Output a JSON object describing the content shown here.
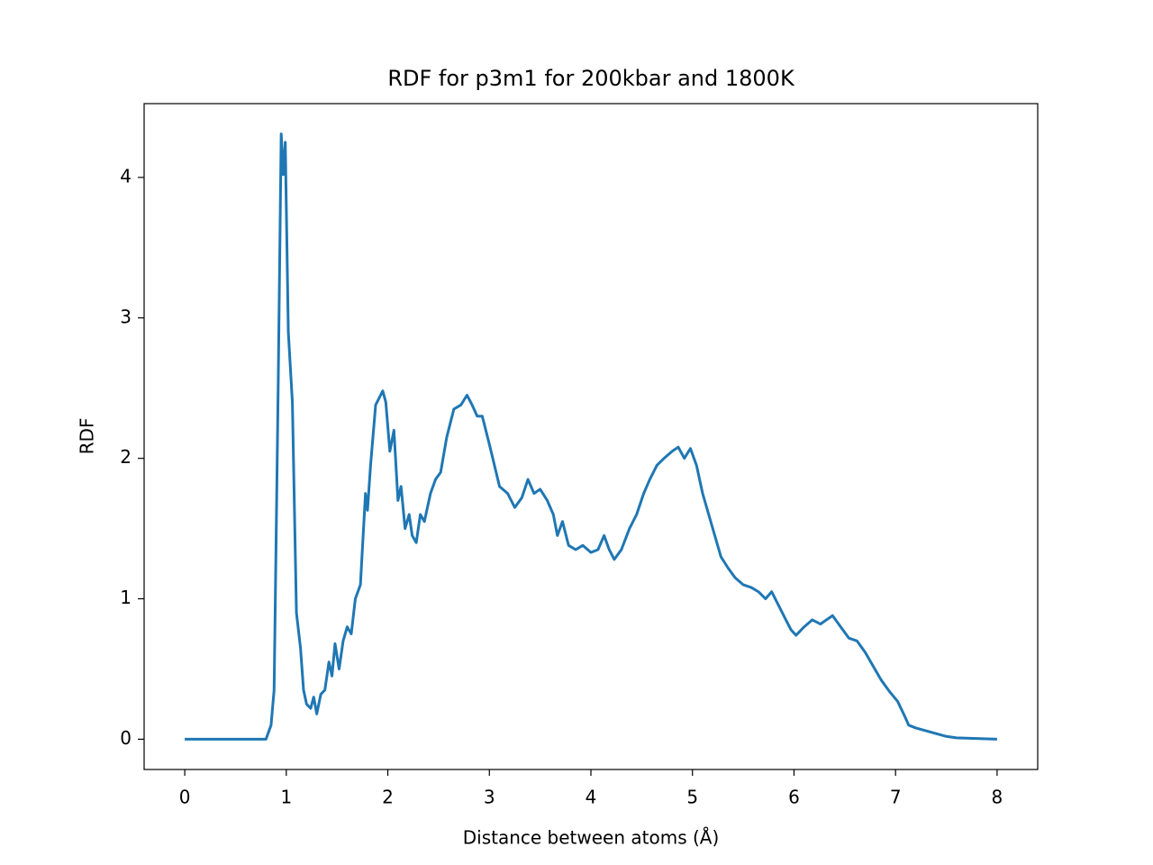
{
  "chart_data": {
    "type": "line",
    "title": "RDF for p3m1 for 200kbar and 1800K",
    "xlabel": "Distance between atoms (Å)",
    "ylabel": "RDF",
    "color": "#1f77b4",
    "x": [
      0,
      0.8,
      0.85,
      0.88,
      0.92,
      0.95,
      0.97,
      0.99,
      1.02,
      1.06,
      1.1,
      1.14,
      1.17,
      1.2,
      1.24,
      1.27,
      1.3,
      1.34,
      1.38,
      1.42,
      1.45,
      1.48,
      1.52,
      1.56,
      1.6,
      1.64,
      1.68,
      1.73,
      1.78,
      1.8,
      1.83,
      1.88,
      1.95,
      1.98,
      2.02,
      2.06,
      2.1,
      2.13,
      2.17,
      2.21,
      2.24,
      2.28,
      2.32,
      2.36,
      2.42,
      2.47,
      2.52,
      2.58,
      2.65,
      2.72,
      2.78,
      2.83,
      2.88,
      2.93,
      3.0,
      3.05,
      3.1,
      3.18,
      3.25,
      3.32,
      3.38,
      3.44,
      3.5,
      3.57,
      3.63,
      3.67,
      3.72,
      3.78,
      3.85,
      3.92,
      4.0,
      4.07,
      4.13,
      4.18,
      4.23,
      4.3,
      4.38,
      4.45,
      4.52,
      4.58,
      4.65,
      4.72,
      4.8,
      4.86,
      4.92,
      4.98,
      5.04,
      5.1,
      5.16,
      5.22,
      5.28,
      5.35,
      5.42,
      5.5,
      5.58,
      5.65,
      5.72,
      5.78,
      5.85,
      5.92,
      5.97,
      6.02,
      6.1,
      6.18,
      6.26,
      6.32,
      6.38,
      6.46,
      6.54,
      6.62,
      6.7,
      6.78,
      6.86,
      6.94,
      7.02,
      7.08,
      7.13,
      7.2,
      7.3,
      7.4,
      7.5,
      7.6,
      7.8,
      8.0
    ],
    "values": [
      0,
      0,
      0.1,
      0.35,
      2.5,
      4.31,
      4.02,
      4.25,
      2.9,
      2.4,
      0.9,
      0.65,
      0.35,
      0.25,
      0.22,
      0.3,
      0.18,
      0.32,
      0.35,
      0.55,
      0.45,
      0.68,
      0.5,
      0.7,
      0.8,
      0.75,
      1.0,
      1.1,
      1.75,
      1.63,
      1.95,
      2.38,
      2.48,
      2.4,
      2.05,
      2.2,
      1.7,
      1.8,
      1.5,
      1.6,
      1.45,
      1.4,
      1.6,
      1.55,
      1.75,
      1.85,
      1.9,
      2.15,
      2.35,
      2.38,
      2.45,
      2.38,
      2.3,
      2.3,
      2.1,
      1.95,
      1.8,
      1.75,
      1.65,
      1.72,
      1.85,
      1.75,
      1.78,
      1.7,
      1.6,
      1.45,
      1.55,
      1.38,
      1.35,
      1.38,
      1.33,
      1.35,
      1.45,
      1.35,
      1.28,
      1.35,
      1.5,
      1.6,
      1.75,
      1.85,
      1.95,
      2.0,
      2.05,
      2.08,
      2.0,
      2.07,
      1.95,
      1.75,
      1.6,
      1.45,
      1.3,
      1.22,
      1.15,
      1.1,
      1.08,
      1.05,
      1.0,
      1.05,
      0.95,
      0.85,
      0.78,
      0.74,
      0.8,
      0.85,
      0.82,
      0.85,
      0.88,
      0.8,
      0.72,
      0.7,
      0.62,
      0.52,
      0.42,
      0.34,
      0.27,
      0.18,
      0.1,
      0.08,
      0.06,
      0.04,
      0.02,
      0.01,
      0.005,
      0.0
    ],
    "xlim": [
      -0.4,
      8.4
    ],
    "ylim": [
      -0.2155,
      4.5255
    ],
    "xticks": [
      0,
      1,
      2,
      3,
      4,
      5,
      6,
      7,
      8
    ],
    "yticks": [
      0,
      1,
      2,
      3,
      4
    ]
  }
}
